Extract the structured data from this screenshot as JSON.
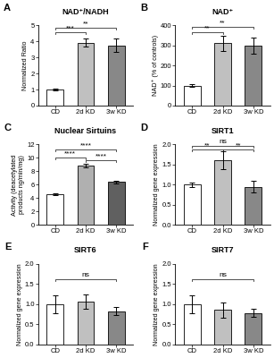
{
  "chart_data": [
    {
      "type": "bar",
      "panel_label": "A",
      "title": "NAD⁺/NADH",
      "ylabel": "Normalized Ratio",
      "categories": [
        "CD",
        "2d KD",
        "3w KD"
      ],
      "values": [
        1.0,
        3.9,
        3.75
      ],
      "errors": [
        0.08,
        0.25,
        0.4
      ],
      "colors": [
        "white",
        "#c0c0c0",
        "#888888"
      ],
      "ylim": [
        0,
        5
      ],
      "yticks": [
        0,
        1,
        2,
        3,
        4,
        5
      ],
      "annotations": [
        {
          "from": "CD",
          "to": "2d KD",
          "y": 4.55,
          "text": "***"
        },
        {
          "from": "CD",
          "to": "3w KD",
          "y": 4.85,
          "text": "**"
        }
      ]
    },
    {
      "type": "bar",
      "panel_label": "B",
      "title": "NAD⁺",
      "ylabel": "NAD⁺ (% of controls)",
      "categories": [
        "CD",
        "2d KD",
        "3w KD"
      ],
      "values": [
        100,
        310,
        298
      ],
      "errors": [
        8,
        38,
        42
      ],
      "colors": [
        "white",
        "#c0c0c0",
        "#888888"
      ],
      "ylim": [
        0,
        400
      ],
      "yticks": [
        0,
        100,
        200,
        300,
        400
      ],
      "annotations": [
        {
          "from": "CD",
          "to": "2d KD",
          "y": 365,
          "text": "**"
        },
        {
          "from": "CD",
          "to": "3w KD",
          "y": 390,
          "text": "**"
        }
      ]
    },
    {
      "type": "bar",
      "panel_label": "C",
      "title": "Nuclear Sirtuins",
      "ylabel": "Activity (deacetylated\nproducts ng/min/mg)",
      "categories": [
        "CD",
        "2d KD",
        "3w KD"
      ],
      "values": [
        4.6,
        8.8,
        6.4
      ],
      "errors": [
        0.18,
        0.28,
        0.18
      ],
      "colors": [
        "white",
        "#b0b0b0",
        "#606060"
      ],
      "ylim": [
        0,
        12
      ],
      "yticks": [
        0,
        2,
        4,
        6,
        8,
        10,
        12
      ],
      "annotations": [
        {
          "from": "CD",
          "to": "2d KD",
          "y": 10.0,
          "text": "****"
        },
        {
          "from": "2d KD",
          "to": "3w KD",
          "y": 9.6,
          "text": "****"
        },
        {
          "from": "CD",
          "to": "3w KD",
          "y": 11.2,
          "text": "****"
        }
      ]
    },
    {
      "type": "bar",
      "panel_label": "D",
      "title": "SIRT1",
      "ylabel": "Normalized gene expression",
      "categories": [
        "CD",
        "2d KD",
        "3w KD"
      ],
      "values": [
        1.0,
        1.6,
        0.95
      ],
      "errors": [
        0.06,
        0.22,
        0.15
      ],
      "colors": [
        "white",
        "#c0c0c0",
        "#888888"
      ],
      "ylim": [
        0,
        2.0
      ],
      "yticks": [
        {
          "value": 0,
          "label": "0.0"
        },
        0.5,
        {
          "value": 1,
          "label": "1.0"
        },
        1.5,
        {
          "value": 2,
          "label": "2.0"
        }
      ],
      "annotations": [
        {
          "from": "CD",
          "to": "2d KD",
          "y": 1.87,
          "text": "**"
        },
        {
          "from": "2d KD",
          "to": "3w KD",
          "y": 1.87,
          "text": "**"
        },
        {
          "from": "CD",
          "to": "3w KD",
          "y": 1.96,
          "text": "ns"
        }
      ]
    },
    {
      "type": "bar",
      "panel_label": "E",
      "title": "SIRT6",
      "ylabel": "Normalized gene expression",
      "categories": [
        "CD",
        "2d KD",
        "3w KD"
      ],
      "values": [
        1.0,
        1.06,
        0.82
      ],
      "errors": [
        0.22,
        0.18,
        0.1
      ],
      "colors": [
        "white",
        "#c0c0c0",
        "#888888"
      ],
      "ylim": [
        0,
        2.0
      ],
      "yticks": [
        {
          "value": 0,
          "label": "0.0"
        },
        0.5,
        {
          "value": 1,
          "label": "1.0"
        },
        1.5,
        {
          "value": 2,
          "label": "2.0"
        }
      ],
      "annotations": [
        {
          "from": "CD",
          "to": "3w KD",
          "y": 1.62,
          "text": "ns"
        }
      ]
    },
    {
      "type": "bar",
      "panel_label": "F",
      "title": "SIRT7",
      "ylabel": "Normalized gene expression",
      "categories": [
        "CD",
        "2d KD",
        "3w KD"
      ],
      "values": [
        1.0,
        0.85,
        0.78
      ],
      "errors": [
        0.22,
        0.18,
        0.1
      ],
      "colors": [
        "white",
        "#c0c0c0",
        "#888888"
      ],
      "ylim": [
        0,
        2.0
      ],
      "yticks": [
        {
          "value": 0,
          "label": "0.0"
        },
        0.5,
        {
          "value": 1,
          "label": "1.0"
        },
        1.5,
        {
          "value": 2,
          "label": "2.0"
        }
      ],
      "annotations": [
        {
          "from": "CD",
          "to": "3w KD",
          "y": 1.62,
          "text": "ns"
        }
      ]
    }
  ]
}
